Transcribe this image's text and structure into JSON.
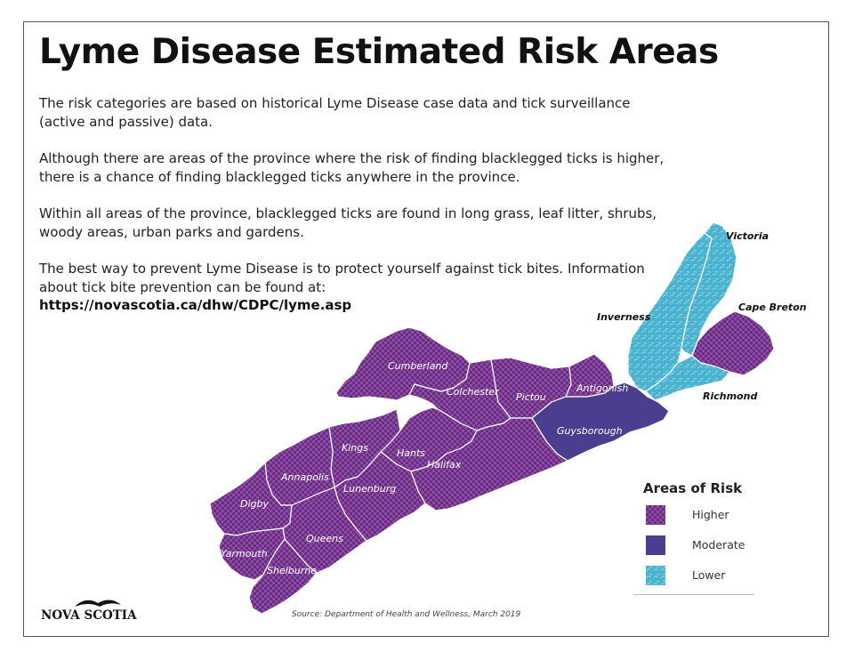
{
  "title": "Lyme Disease Estimated Risk Areas",
  "intro": {
    "p1": "The risk categories are based on historical Lyme Disease case data and tick surveillance (active and passive) data.",
    "p2": "Although there are areas of the province where the risk of finding blacklegged ticks is higher, there is a chance of finding blacklegged ticks anywhere in the province.",
    "p3": "Within all areas of the province, blacklegged ticks are found in long grass, leaf litter, shrubs, woody areas, urban parks and gardens.",
    "p4": "The best way to prevent Lyme Disease is to protect yourself against tick bites. Information about tick bite prevention can be found at:",
    "url": "https://novascotia.ca/dhw/CDPC/lyme.asp"
  },
  "colors": {
    "higher": "#6b2d83",
    "moderate": "#4b3d8f",
    "lower": "#4ab3cf",
    "border": "#ffffff"
  },
  "counties": [
    {
      "name": "Cumberland",
      "risk": "higher"
    },
    {
      "name": "Colchester",
      "risk": "higher"
    },
    {
      "name": "Pictou",
      "risk": "higher"
    },
    {
      "name": "Antigonish",
      "risk": "higher"
    },
    {
      "name": "Guysborough",
      "risk": "moderate"
    },
    {
      "name": "Kings",
      "risk": "higher"
    },
    {
      "name": "Hants",
      "risk": "higher"
    },
    {
      "name": "Halifax",
      "risk": "higher"
    },
    {
      "name": "Annapolis",
      "risk": "higher"
    },
    {
      "name": "Lunenburg",
      "risk": "higher"
    },
    {
      "name": "Digby",
      "risk": "higher"
    },
    {
      "name": "Queens",
      "risk": "higher"
    },
    {
      "name": "Yarmouth",
      "risk": "higher"
    },
    {
      "name": "Shelburne",
      "risk": "higher"
    },
    {
      "name": "Inverness",
      "risk": "lower"
    },
    {
      "name": "Victoria",
      "risk": "lower"
    },
    {
      "name": "Cape Breton",
      "risk": "higher"
    },
    {
      "name": "Richmond",
      "risk": "lower"
    }
  ],
  "legend": {
    "title": "Areas of Risk",
    "items": [
      {
        "label": "Higher",
        "risk": "higher"
      },
      {
        "label": "Moderate",
        "risk": "moderate"
      },
      {
        "label": "Lower",
        "risk": "lower"
      }
    ]
  },
  "logo": {
    "text": "NOVA SCOTIA"
  },
  "source": "Source: Department of Health and Wellness, March 2019"
}
